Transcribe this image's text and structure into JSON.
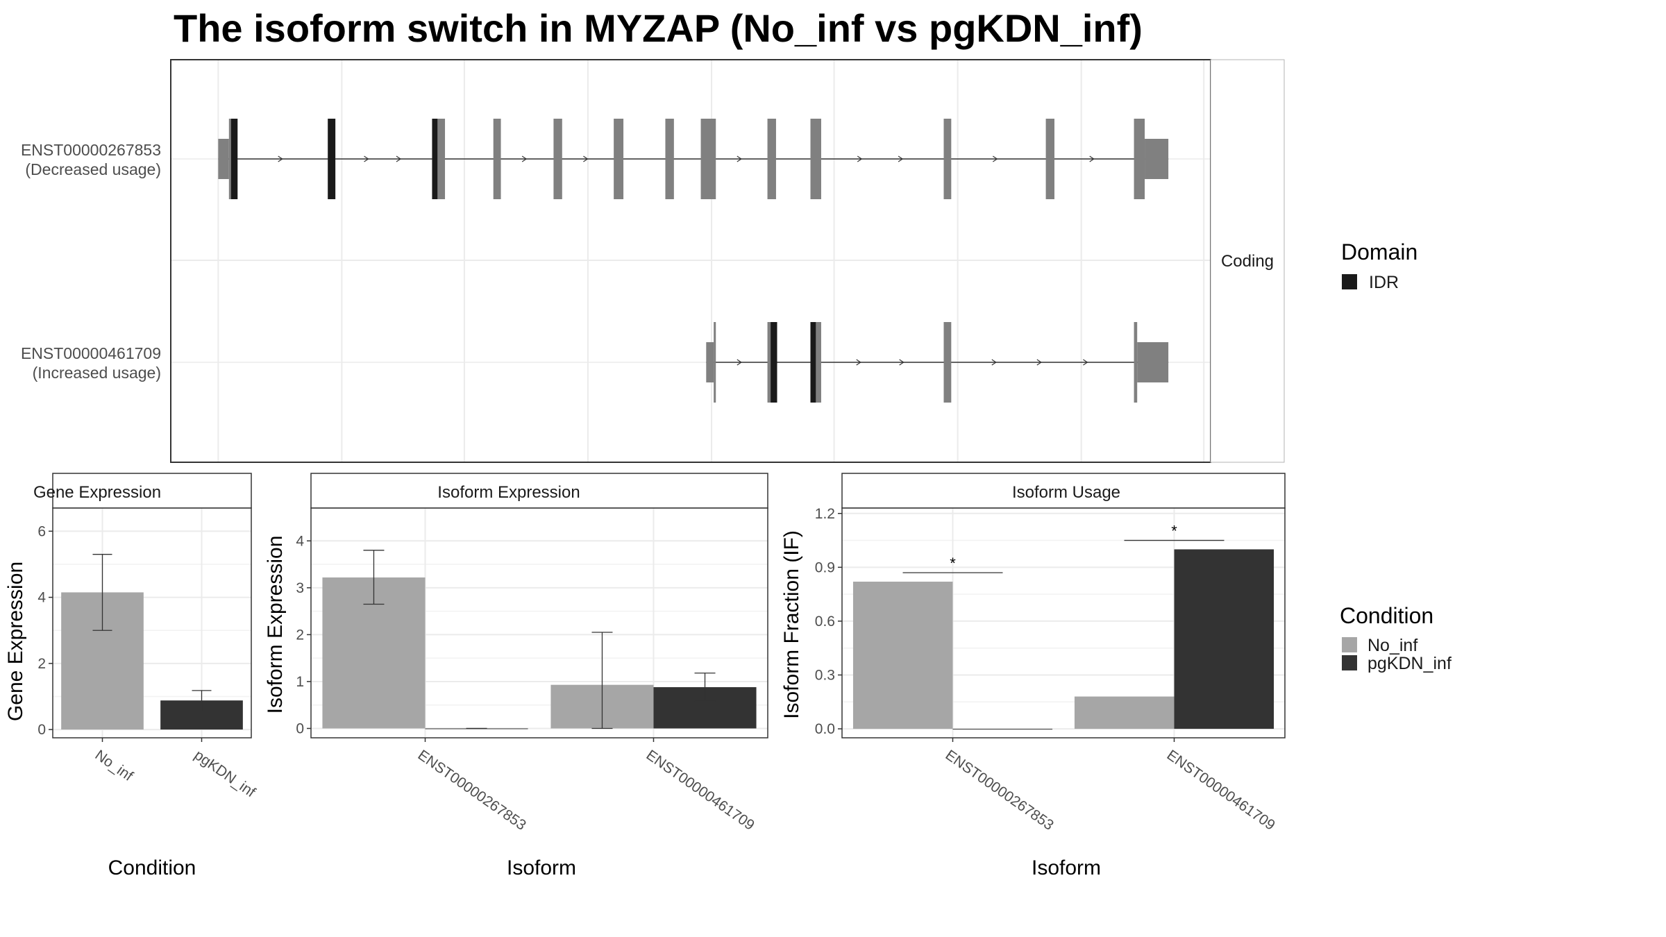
{
  "colors": {
    "exon": "#808080",
    "idr": "#1a1a1a",
    "no_inf": "#a6a6a6",
    "pgkdn_inf": "#333333",
    "grid": "#ebebeb",
    "panel_border": "#333333",
    "strip_fill": "#ffffff"
  },
  "chart_data": [
    {
      "type": "other",
      "subtype": "transcript-structure",
      "title": "The isoform switch in MYZAP (No_inf vs pgKDN_inf)",
      "facet_label": "Coding",
      "tracks": [
        {
          "id": "ENST00000267853",
          "label_line1": "ENST00000267853",
          "label_line2": "(Decreased usage)",
          "utr5": [
            [
              203,
              213
            ]
          ],
          "cds": [
            [
              213,
              221
            ],
            [
              305,
              312
            ],
            [
              402,
              414
            ],
            [
              459,
              466
            ],
            [
              515,
              523
            ],
            [
              571,
              580
            ],
            [
              619,
              627
            ],
            [
              652,
              666
            ],
            [
              714,
              722
            ],
            [
              754,
              764
            ],
            [
              878,
              885
            ],
            [
              973,
              981
            ],
            [
              1055,
              1065
            ]
          ],
          "utr3": [
            [
              1065,
              1087
            ]
          ],
          "idr": [
            [
              215,
              221
            ],
            [
              305,
              312
            ],
            [
              402,
              407
            ]
          ],
          "arrows": [
            262,
            342,
            372,
            489,
            546,
            689,
            801,
            839,
            927,
            1017
          ]
        },
        {
          "id": "ENST00000461709",
          "label_line1": "ENST00000461709",
          "label_line2": "(Increased usage)",
          "utr5": [
            [
              657,
              664
            ]
          ],
          "cds": [
            [
              664,
              666
            ],
            [
              714,
              723
            ],
            [
              754,
              764
            ],
            [
              878,
              885
            ],
            [
              1055,
              1058
            ]
          ],
          "utr3": [
            [
              1058,
              1087
            ]
          ],
          "idr": [
            [
              717,
              723
            ],
            [
              754,
              759
            ]
          ],
          "arrows": [
            689,
            800,
            840,
            926,
            968,
            1011
          ]
        }
      ]
    },
    {
      "type": "bar",
      "title": "Gene Expression",
      "xlabel": "Condition",
      "ylabel": "Gene Expression",
      "categories": [
        "No_inf",
        "pgKDN_inf"
      ],
      "values": [
        4.15,
        0.88
      ],
      "error_low": [
        3.0,
        0.55
      ],
      "error_high": [
        5.3,
        1.18
      ],
      "ylim": [
        -0.25,
        6.7
      ],
      "yticks": [
        0,
        2,
        4,
        6
      ],
      "ytick_labels": [
        "0",
        "2",
        "4",
        "6"
      ]
    },
    {
      "type": "bar",
      "title": "Isoform Expression",
      "xlabel": "Isoform",
      "ylabel": "Isoform Expression",
      "categories": [
        "ENST00000267853",
        "ENST00000461709"
      ],
      "series": [
        {
          "name": "No_inf",
          "values": [
            3.22,
            0.93
          ],
          "error_low": [
            2.65,
            0.0
          ],
          "error_high": [
            3.8,
            2.05
          ]
        },
        {
          "name": "pgKDN_inf",
          "values": [
            0.0,
            0.88
          ],
          "error_low": [
            0.0,
            0.58
          ],
          "error_high": [
            0.0,
            1.18
          ]
        }
      ],
      "ylim": [
        -0.2,
        4.7
      ],
      "yticks": [
        0,
        1,
        2,
        3,
        4
      ],
      "ytick_labels": [
        "0",
        "1",
        "2",
        "3",
        "4"
      ]
    },
    {
      "type": "bar",
      "title": "Isoform Usage",
      "xlabel": "Isoform",
      "ylabel": "Isoform Fraction (IF)",
      "categories": [
        "ENST00000267853",
        "ENST00000461709"
      ],
      "series": [
        {
          "name": "No_inf",
          "values": [
            0.82,
            0.18
          ]
        },
        {
          "name": "pgKDN_inf",
          "values": [
            0.0,
            1.0
          ]
        }
      ],
      "significance": [
        {
          "category": 0,
          "y": 0.87,
          "label": "*"
        },
        {
          "category": 1,
          "y": 1.05,
          "label": "*"
        }
      ],
      "ylim": [
        -0.05,
        1.23
      ],
      "yticks": [
        0.0,
        0.3,
        0.6,
        0.9,
        1.2
      ],
      "ytick_labels": [
        "0.0",
        "0.3",
        "0.6",
        "0.9",
        "1.2"
      ]
    }
  ],
  "legends": {
    "domain": {
      "title": "Domain",
      "items": [
        {
          "label": "IDR",
          "color": "#1a1a1a"
        }
      ]
    },
    "condition": {
      "title": "Condition",
      "items": [
        {
          "label": "No_inf",
          "color": "#a6a6a6"
        },
        {
          "label": "pgKDN_inf",
          "color": "#333333"
        }
      ]
    }
  }
}
